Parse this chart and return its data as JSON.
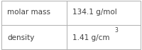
{
  "rows": [
    {
      "label": "molar mass",
      "value": "134.1 g/mol",
      "superscript": ""
    },
    {
      "label": "density",
      "value": "1.41 g/cm",
      "superscript": "3"
    }
  ],
  "background_color": "#ffffff",
  "border_color": "#b0b0b0",
  "text_color": "#404040",
  "label_fontsize": 7.5,
  "value_fontsize": 7.5,
  "super_fontsize": 5.5,
  "col_split": 0.47,
  "figwidth": 2.0,
  "figheight": 0.7,
  "dpi": 100
}
